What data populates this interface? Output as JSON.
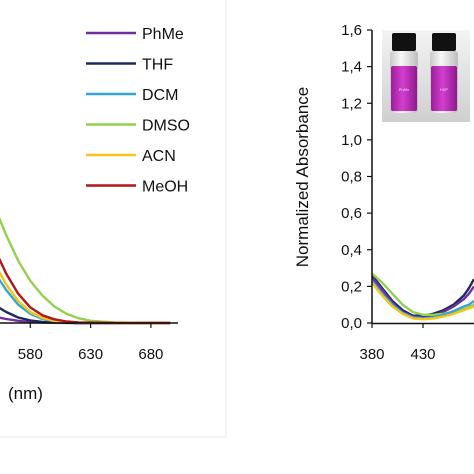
{
  "chart_data": [
    {
      "type": "line",
      "title": "",
      "xlabel": "(nm)",
      "ylabel": "",
      "xlim": [
        530,
        700
      ],
      "ylim": [
        0,
        1.6
      ],
      "x_ticks": [
        "580",
        "630",
        "680"
      ],
      "y_ticks": [],
      "grid": false,
      "legend": "right",
      "series": [
        {
          "name": "PhMe",
          "color": "#7030a0",
          "x": [
            530,
            540,
            550,
            560,
            570,
            580,
            590,
            600,
            620,
            650,
            680,
            696
          ],
          "y": [
            0.07,
            0.05,
            0.035,
            0.022,
            0.012,
            0.006,
            0.003,
            0.001,
            0.0,
            0.0,
            0.0,
            0.0
          ]
        },
        {
          "name": "THF",
          "color": "#1f2a5c",
          "x": [
            530,
            540,
            550,
            560,
            570,
            580,
            590,
            600,
            620,
            650,
            680,
            696
          ],
          "y": [
            0.2,
            0.15,
            0.1,
            0.06,
            0.03,
            0.014,
            0.006,
            0.002,
            0.0,
            0.0,
            0.0,
            0.0
          ]
        },
        {
          "name": "DCM",
          "color": "#34a6d8",
          "x": [
            530,
            540,
            550,
            560,
            570,
            580,
            590,
            600,
            620,
            650,
            680,
            696
          ],
          "y": [
            0.55,
            0.4,
            0.28,
            0.18,
            0.1,
            0.05,
            0.022,
            0.01,
            0.002,
            0.0,
            0.0,
            0.0
          ]
        },
        {
          "name": "DMSO",
          "color": "#92d050",
          "x": [
            530,
            540,
            550,
            560,
            570,
            580,
            590,
            600,
            610,
            620,
            630,
            650,
            680,
            696
          ],
          "y": [
            1.0,
            0.82,
            0.64,
            0.48,
            0.34,
            0.23,
            0.15,
            0.09,
            0.05,
            0.026,
            0.012,
            0.003,
            0.0,
            0.0
          ]
        },
        {
          "name": "ACN",
          "color": "#f5c518",
          "x": [
            530,
            540,
            550,
            560,
            570,
            580,
            590,
            600,
            620,
            650,
            680,
            696
          ],
          "y": [
            0.62,
            0.46,
            0.33,
            0.21,
            0.12,
            0.06,
            0.028,
            0.012,
            0.002,
            0.0,
            0.0,
            0.0
          ]
        },
        {
          "name": "MeOH",
          "color": "#b01818",
          "x": [
            530,
            540,
            550,
            560,
            570,
            580,
            590,
            600,
            610,
            620,
            650,
            680,
            696
          ],
          "y": [
            0.74,
            0.57,
            0.41,
            0.27,
            0.16,
            0.085,
            0.042,
            0.02,
            0.008,
            0.003,
            0.0,
            0.0,
            0.0
          ]
        }
      ]
    },
    {
      "type": "line",
      "title": "",
      "xlabel": "",
      "ylabel": "Normalized Absorbance",
      "xlim": [
        380,
        480
      ],
      "ylim": [
        0,
        1.6
      ],
      "x_ticks": [
        "380",
        "430"
      ],
      "y_ticks": [
        "0,0",
        "0,2",
        "0,4",
        "0,6",
        "0,8",
        "1,0",
        "1,2",
        "1,4",
        "1,6"
      ],
      "grid": false,
      "inset": {
        "vial_labels": [
          "PhMe",
          "HSP"
        ]
      },
      "series": [
        {
          "color": "#1f2a5c",
          "x": [
            380,
            390,
            400,
            410,
            420,
            430,
            440,
            450,
            460,
            470,
            475,
            480
          ],
          "y": [
            0.26,
            0.19,
            0.12,
            0.07,
            0.04,
            0.04,
            0.05,
            0.07,
            0.1,
            0.15,
            0.19,
            0.24
          ]
        },
        {
          "color": "#7030a0",
          "x": [
            380,
            390,
            400,
            410,
            420,
            430,
            440,
            450,
            460,
            470,
            475,
            480
          ],
          "y": [
            0.25,
            0.18,
            0.11,
            0.06,
            0.035,
            0.03,
            0.04,
            0.06,
            0.09,
            0.13,
            0.16,
            0.2
          ]
        },
        {
          "color": "#92d050",
          "x": [
            380,
            390,
            400,
            410,
            420,
            430,
            440,
            450,
            460,
            470,
            475,
            480
          ],
          "y": [
            0.27,
            0.22,
            0.16,
            0.1,
            0.06,
            0.045,
            0.045,
            0.05,
            0.06,
            0.075,
            0.085,
            0.1
          ]
        },
        {
          "color": "#34a6d8",
          "x": [
            380,
            390,
            400,
            410,
            420,
            430,
            440,
            450,
            460,
            470,
            475,
            480
          ],
          "y": [
            0.23,
            0.16,
            0.1,
            0.055,
            0.03,
            0.025,
            0.03,
            0.045,
            0.065,
            0.09,
            0.1,
            0.12
          ]
        },
        {
          "color": "#f5c518",
          "x": [
            380,
            390,
            400,
            410,
            420,
            430,
            440,
            450,
            460,
            470,
            475,
            480
          ],
          "y": [
            0.22,
            0.15,
            0.09,
            0.05,
            0.025,
            0.02,
            0.025,
            0.035,
            0.05,
            0.07,
            0.08,
            0.09
          ]
        }
      ]
    }
  ]
}
